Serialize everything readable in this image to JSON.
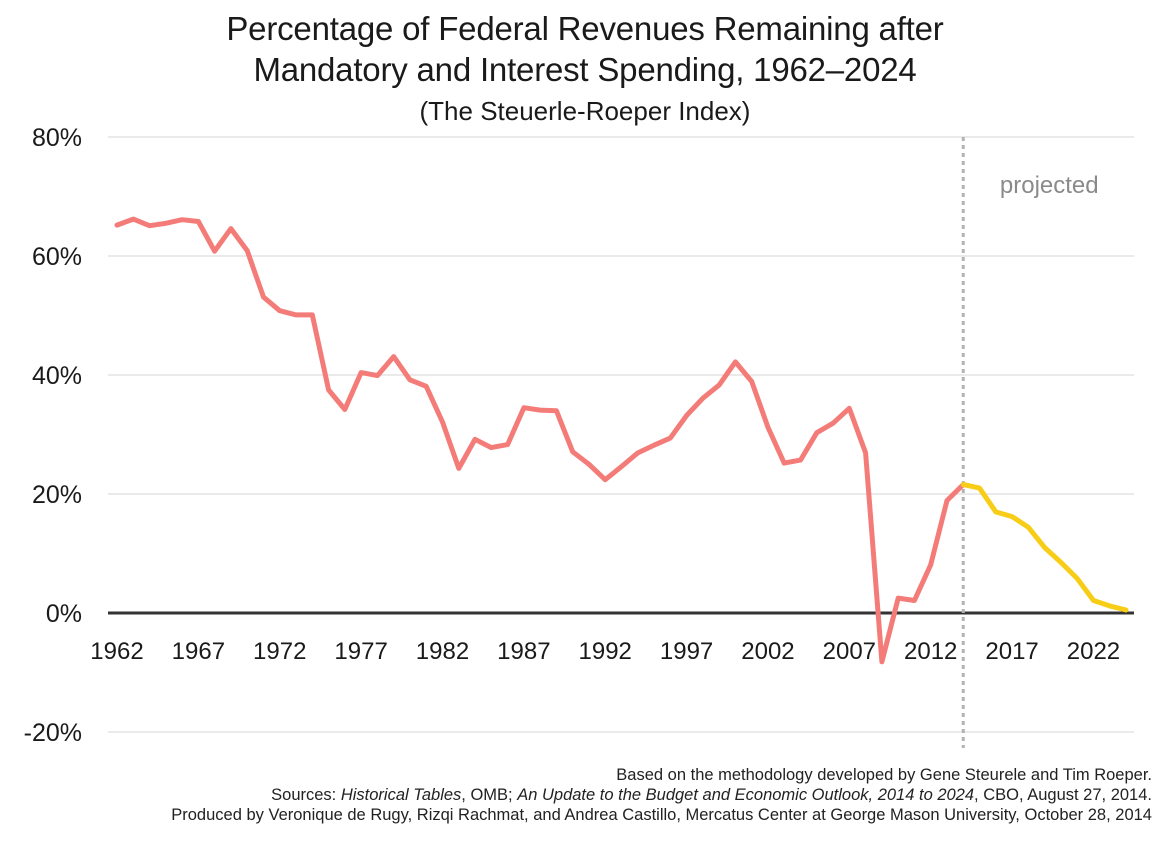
{
  "header": {
    "title_line1": "Percentage of Federal Revenues Remaining after",
    "title_line2": "Mandatory and Interest Spending, 1962–2024",
    "subtitle": "(The Steuerle-Roeper Index)"
  },
  "chart_data": {
    "type": "line",
    "title": "Percentage of Federal Revenues Remaining after Mandatory and Interest Spending, 1962–2024",
    "subtitle": "(The Steuerle-Roeper Index)",
    "xlabel": "",
    "ylabel": "",
    "ylim": [
      -20,
      80
    ],
    "xlim": [
      1962,
      2024
    ],
    "y_ticks": [
      -20,
      0,
      20,
      40,
      60,
      80
    ],
    "y_tick_labels": [
      "-20%",
      "0%",
      "20%",
      "40%",
      "60%",
      "80%"
    ],
    "x_ticks": [
      1962,
      1967,
      1972,
      1977,
      1982,
      1987,
      1992,
      1997,
      2002,
      2007,
      2012,
      2017,
      2022
    ],
    "x_tick_labels": [
      "1962",
      "1967",
      "1972",
      "1977",
      "1982",
      "1987",
      "1992",
      "1997",
      "2002",
      "2007",
      "2012",
      "2017",
      "2022"
    ],
    "grid": true,
    "projection_start": 2014,
    "annotation": "projected",
    "series": [
      {
        "color": "#f47c78",
        "x": [
          1962,
          1963,
          1964,
          1965,
          1966,
          1967,
          1968,
          1969,
          1970,
          1971,
          1972,
          1973,
          1974,
          1975,
          1976,
          1977,
          1978,
          1979,
          1980,
          1981,
          1982,
          1983,
          1984,
          1985,
          1986,
          1987,
          1988,
          1989,
          1990,
          1991,
          1992,
          1993,
          1994,
          1995,
          1996,
          1997,
          1998,
          1999,
          2000,
          2001,
          2002,
          2003,
          2004,
          2005,
          2006,
          2007,
          2008,
          2009,
          2010,
          2011,
          2012,
          2013,
          2014
        ],
        "values": [
          65.2,
          66.2,
          65.1,
          65.5,
          66.1,
          65.8,
          60.8,
          64.6,
          60.9,
          53.1,
          50.8,
          50.1,
          50.1,
          37.5,
          34.2,
          40.4,
          39.9,
          43.1,
          39.2,
          38.1,
          32.1,
          24.3,
          29.2,
          27.8,
          28.3,
          34.5,
          34.1,
          34.0,
          27.1,
          25.0,
          22.4,
          24.6,
          26.9,
          28.2,
          29.4,
          33.2,
          36.1,
          38.3,
          42.2,
          38.9,
          31.2,
          25.2,
          25.7,
          30.3,
          31.9,
          34.4,
          26.9,
          -8.2,
          2.5,
          2.1,
          8.1,
          18.9,
          21.6
        ]
      },
      {
        "color": "#f8cd17",
        "x": [
          2014,
          2015,
          2016,
          2017,
          2018,
          2019,
          2020,
          2021,
          2022,
          2023,
          2024
        ],
        "values": [
          21.6,
          21.0,
          17.0,
          16.2,
          14.4,
          11.0,
          8.5,
          5.8,
          2.1,
          1.2,
          0.5
        ]
      }
    ],
    "colors": {
      "historical": "#f47c78",
      "projected": "#f8cd17",
      "zero_line": "#333333",
      "divider": "#b3b3b3",
      "grid": "#dddddd"
    }
  },
  "footer": {
    "line1": "Based on the methodology developed by Gene Steurele and Tim Roeper.",
    "line2_prefix": "Sources: ",
    "line2_italic1": "Historical Tables",
    "line2_mid": ", OMB; ",
    "line2_italic2": "An Update to the Budget and Economic Outlook, 2014 to 2024",
    "line2_suffix": ", CBO, August 27, 2014.",
    "line3": "Produced by Veronique de Rugy, Rizqi Rachmat, and Andrea Castillo, Mercatus Center at George Mason University, October 28, 2014"
  }
}
